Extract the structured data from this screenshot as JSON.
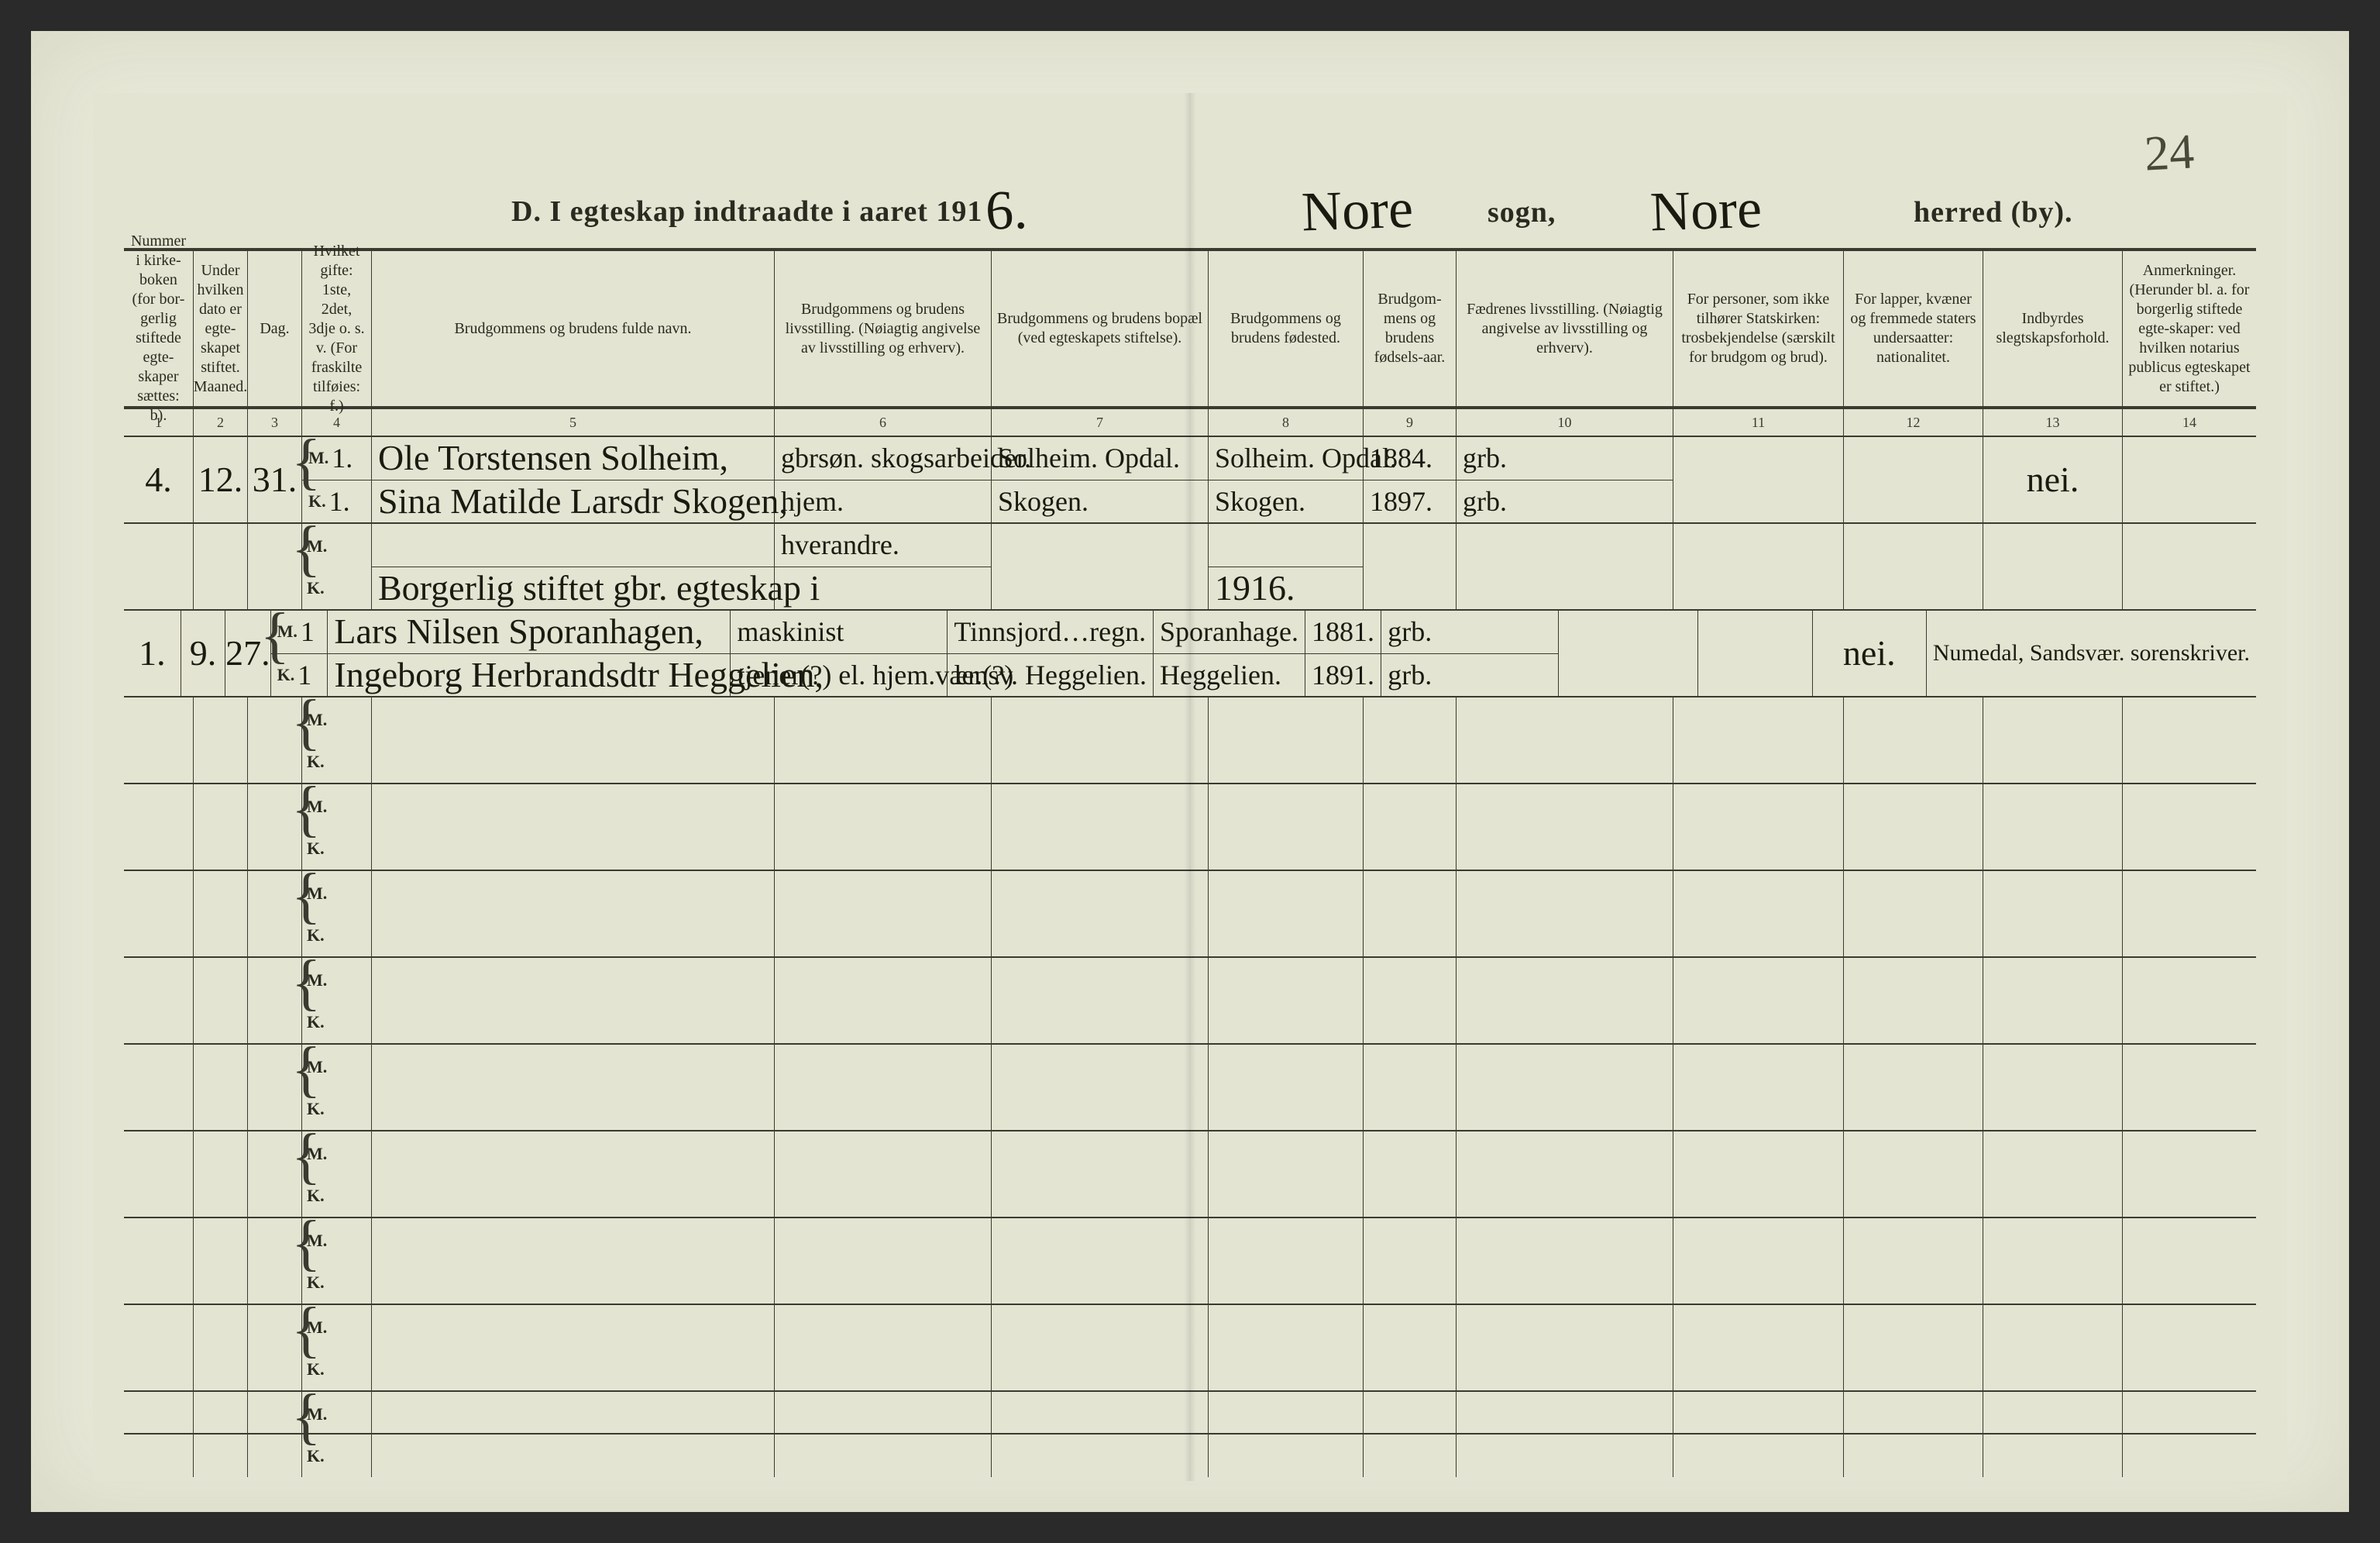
{
  "page_number_handwritten": "24",
  "title": {
    "prefix": "D.  I egteskap indtraadte i aaret 191",
    "year_suffix_hand": "6.",
    "sogn_hand": "Nore",
    "sogn_label": "sogn,",
    "herred_hand": "Nore",
    "herred_label": "herred (by)."
  },
  "columns": [
    {
      "n": "1",
      "w": "c1",
      "label": "Nummer i kirke-boken (for bor-gerlig stiftede egte-skaper sættes: b)."
    },
    {
      "n": "2",
      "w": "c2",
      "label": "Under hvilken dato er egte-skapet stiftet.\nMaaned."
    },
    {
      "n": "3",
      "w": "c3",
      "label": "Dag."
    },
    {
      "n": "4",
      "w": "c4",
      "label": "Hvilket gifte: 1ste, 2det, 3dje o. s. v. (For fraskilte tilføies:  f.)"
    },
    {
      "n": "5",
      "w": "c5",
      "label": "Brudgommens og brudens fulde navn."
    },
    {
      "n": "6",
      "w": "c6",
      "label": "Brudgommens og brudens livsstilling. (Nøiagtig angivelse av livsstilling og erhverv)."
    },
    {
      "n": "7",
      "w": "c7",
      "label": "Brudgommens og brudens bopæl (ved egteskapets stiftelse)."
    },
    {
      "n": "8",
      "w": "c8",
      "label": "Brudgommens og brudens fødested."
    },
    {
      "n": "9",
      "w": "c9",
      "label": "Brudgom-mens og brudens fødsels-aar."
    },
    {
      "n": "10",
      "w": "c10",
      "label": "Fædrenes livsstilling. (Nøiagtig angivelse av livsstilling og erhverv)."
    },
    {
      "n": "11",
      "w": "c11",
      "label": "For personer, som ikke tilhører Statskirken: trosbekjendelse (særskilt for brudgom og brud)."
    },
    {
      "n": "12",
      "w": "c12",
      "label": "For lapper, kvæner og fremmede staters undersaatter: nationalitet."
    },
    {
      "n": "13",
      "w": "c13",
      "label": "Indbyrdes slegtskapsforhold."
    },
    {
      "n": "14",
      "w": "c14",
      "label": "Anmerkninger. (Herunder bl. a. for borgerlig stiftede egte-skaper: ved hvilken notarius publicus egteskapet er stiftet.)"
    }
  ],
  "rows": [
    {
      "num": "4.",
      "maaned": "12.",
      "dag": "31.",
      "m": {
        "gifte": "1.",
        "navn": "Ole Torstensen Solheim,",
        "stilling": "gbrsøn. skogsarbeider.",
        "bopael": "Solheim. Opdal.",
        "fodested": "Solheim. Opdal.",
        "aar": "1884.",
        "fader": "grb."
      },
      "k": {
        "gifte": "1.",
        "navn": "Sina Matilde Larsdr Skogen,",
        "stilling": "hjem.",
        "bopael": "Skogen.",
        "fodested": "Skogen.",
        "aar": "1897.",
        "fader": "grb."
      },
      "col13": "nei."
    },
    {
      "note_line": {
        "upper": "hverandre.",
        "line": "Borgerlig stiftet  gbr. egteskap i",
        "aar": "1916."
      }
    },
    {
      "num": "1.",
      "maaned": "9.",
      "dag": "27.",
      "m": {
        "gifte": "1",
        "navn": "Lars Nilsen Sporanhagen,",
        "stilling": "maskinist",
        "bopael": "Tinnsjord…regn.",
        "fodested": "Sporanhage.",
        "aar": "1881.",
        "fader": "grb."
      },
      "k": {
        "gifte": "1",
        "navn": "Ingeborg Herbrandsdtr Heggelien,",
        "stilling": "tjener(?) el. hjem.vær.(?)",
        "bopael": "lensv. Heggelien.",
        "fodested": "Heggelien.",
        "aar": "1891.",
        "fader": "grb."
      },
      "col13": "nei.",
      "col14": "Numedal, Sandsvær. sorenskriver."
    },
    {
      "blank": true
    },
    {
      "blank": true
    },
    {
      "blank": true
    },
    {
      "blank": true
    },
    {
      "blank": true
    },
    {
      "blank": true
    },
    {
      "blank": true
    },
    {
      "blank": true
    },
    {
      "blank": true
    }
  ],
  "mk_labels": {
    "m": "M.",
    "k": "K."
  },
  "colors": {
    "paper": "#e4e4d2",
    "ink": "#1a1a10",
    "rule": "#3a3a30"
  }
}
